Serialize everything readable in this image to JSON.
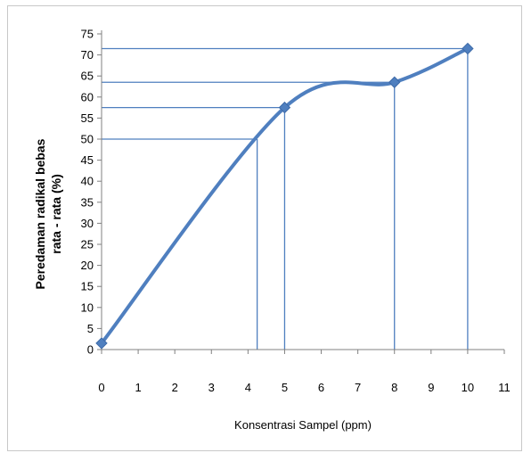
{
  "chart_data": {
    "type": "line",
    "xlabel": "Konsentrasi Sampel (ppm)",
    "ylabel_line1": "Peredaman radikal bebas",
    "ylabel_line2": "rata - rata (%)",
    "xlim": [
      0,
      11
    ],
    "ylim": [
      0,
      75
    ],
    "x_ticks": [
      0,
      1,
      2,
      3,
      4,
      5,
      6,
      7,
      8,
      9,
      10,
      11
    ],
    "y_ticks": [
      0,
      5,
      10,
      15,
      20,
      25,
      30,
      35,
      40,
      45,
      50,
      55,
      60,
      65,
      70,
      75
    ],
    "series": [
      {
        "points": [
          {
            "x": 0,
            "y": 1.5
          },
          {
            "x": 5,
            "y": 57.5
          },
          {
            "x": 8,
            "y": 63.5
          },
          {
            "x": 10,
            "y": 71.5
          }
        ]
      }
    ],
    "reference_lines": [
      {
        "x": 4.25,
        "y": 50
      },
      {
        "x": 5,
        "y": 57.5
      },
      {
        "x": 8,
        "y": 63.5
      },
      {
        "x": 10,
        "y": 71.5
      }
    ],
    "line_color": "#4f7fbf",
    "ref_color": "#4f7fbf",
    "grid": false
  }
}
